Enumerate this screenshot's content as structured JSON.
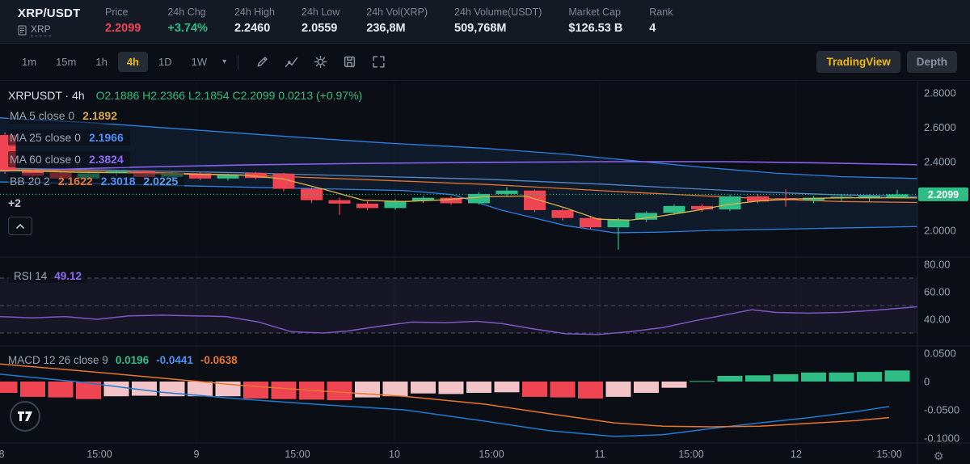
{
  "colors": {
    "bg": "#0b0f15",
    "up": "#2ebd85",
    "down": "#ef4452",
    "accent": "#f0b90b",
    "macd_pink": "#f2c4c8",
    "macd_line": "#1f7ad1",
    "signal_line": "#e8762d",
    "rsi_line": "#7e57c2",
    "ma5": "#d9b34a",
    "ma25": "#5688c7",
    "ma60": "#8a63f0",
    "bb_line": "#2f80e0",
    "bb_mid": "#e8762d",
    "axis_text": "#97a0ac"
  },
  "header": {
    "pair": "XRP/USDT",
    "pair_sub": "XRP",
    "stats": [
      {
        "label": "Price",
        "value": "2.2099"
      },
      {
        "label": "24h Chg",
        "value": "+3.74%"
      },
      {
        "label": "24h High",
        "value": "2.2460"
      },
      {
        "label": "24h Low",
        "value": "2.0559"
      },
      {
        "label": "24h Vol(XRP)",
        "value": "236,8M"
      },
      {
        "label": "24h Volume(USDT)",
        "value": "509,768M"
      },
      {
        "label": "Market Cap",
        "value": "$126.53 B"
      },
      {
        "label": "Rank",
        "value": "4"
      }
    ]
  },
  "toolbar": {
    "intervals": [
      "1m",
      "15m",
      "1h",
      "4h",
      "1D",
      "1W"
    ],
    "active_interval": "4h",
    "caret": "▾",
    "buttons": {
      "tradingview": "TradingView",
      "depth": "Depth"
    }
  },
  "legend": {
    "symbol_row": {
      "title": "XRPUSDT · 4h",
      "ohlc": "O2.1886  H2.2366  L2.1854  C2.2099  0.0213 (+0.97%)"
    },
    "ma5": {
      "label": "MA 5 close 0",
      "value": "2.1892"
    },
    "ma25": {
      "label": "MA 25 close 0",
      "value": "2.1966"
    },
    "ma60": {
      "label": "MA 60 close 0",
      "value": "2.3824"
    },
    "bb": {
      "label": "BB 20 2",
      "v1": "2.1622",
      "v2": "2.3018",
      "v3": "2.0225"
    },
    "more": "+2",
    "rsi": {
      "label": "RSI 14",
      "value": "49.12"
    },
    "macd": {
      "label": "MACD 12 26 close 9",
      "v1": "0.0196",
      "v2": "-0.0441",
      "v3": "-0.0638"
    }
  },
  "time_axis": {
    "ticks": [
      [
        "8",
        2
      ],
      [
        "15:00",
        123
      ],
      [
        "9",
        243
      ],
      [
        "15:00",
        368
      ],
      [
        "10",
        488
      ],
      [
        "15:00",
        608
      ],
      [
        "11",
        742
      ],
      [
        "15:00",
        855
      ],
      [
        "12",
        985
      ],
      [
        "15:00",
        1100
      ]
    ],
    "day_gridlines": [
      243,
      488,
      742,
      985
    ]
  },
  "chart_data": [
    {
      "type": "candlestick",
      "panel": "main",
      "symbol": "XRPUSDT",
      "interval": "4h",
      "last_price": 2.2099,
      "last_price_label": "2.2099",
      "y_axis": [
        [
          "2.8000",
          2.8
        ],
        [
          "2.6000",
          2.6
        ],
        [
          "2.4000",
          2.4
        ],
        [
          "2.0000",
          2.0
        ]
      ],
      "candles": [
        [
          6,
          2.555,
          2.57,
          2.33,
          2.345
        ],
        [
          40.5,
          2.35,
          2.36,
          2.3,
          2.318
        ],
        [
          75,
          2.335,
          2.345,
          2.29,
          2.302
        ],
        [
          109.5,
          2.302,
          2.34,
          2.295,
          2.332
        ],
        [
          144,
          2.332,
          2.352,
          2.318,
          2.345
        ],
        [
          178.5,
          2.345,
          2.35,
          2.3,
          2.312
        ],
        [
          213,
          2.312,
          2.34,
          2.3,
          2.332
        ],
        [
          247.5,
          2.332,
          2.34,
          2.292,
          2.302
        ],
        [
          282,
          2.302,
          2.33,
          2.29,
          2.322
        ],
        [
          316.5,
          2.335,
          2.34,
          2.298,
          2.305
        ],
        [
          351,
          2.33,
          2.335,
          2.228,
          2.242
        ],
        [
          385.5,
          2.242,
          2.25,
          2.158,
          2.176
        ],
        [
          420,
          2.176,
          2.19,
          2.09,
          2.156
        ],
        [
          454.5,
          2.156,
          2.17,
          2.118,
          2.13
        ],
        [
          489,
          2.13,
          2.182,
          2.12,
          2.172
        ],
        [
          523.5,
          2.172,
          2.2,
          2.16,
          2.19
        ],
        [
          558,
          2.19,
          2.2,
          2.148,
          2.158
        ],
        [
          592.5,
          2.158,
          2.222,
          2.15,
          2.212
        ],
        [
          627,
          2.212,
          2.252,
          2.198,
          2.232
        ],
        [
          661.5,
          2.232,
          2.238,
          2.106,
          2.118
        ],
        [
          696,
          2.118,
          2.128,
          2.058,
          2.072
        ],
        [
          730.5,
          2.072,
          2.08,
          2.008,
          2.018
        ],
        [
          765,
          2.018,
          2.072,
          1.888,
          2.062
        ],
        [
          799.5,
          2.062,
          2.112,
          2.048,
          2.102
        ],
        [
          834,
          2.102,
          2.152,
          2.09,
          2.142
        ],
        [
          868.5,
          2.142,
          2.152,
          2.108,
          2.122
        ],
        [
          903,
          2.122,
          2.208,
          2.112,
          2.198
        ],
        [
          937.5,
          2.198,
          2.212,
          2.158,
          2.168
        ],
        [
          972,
          2.188,
          2.238,
          2.138,
          2.175
        ],
        [
          1006.5,
          2.175,
          2.2,
          2.158,
          2.19
        ],
        [
          1041,
          2.19,
          2.212,
          2.168,
          2.196
        ],
        [
          1075.5,
          2.186,
          2.21,
          2.17,
          2.2
        ],
        [
          1110,
          2.1886,
          2.2366,
          2.1854,
          2.2099
        ]
      ],
      "overlays": {
        "bb_upper": [
          [
            0,
            2.655
          ],
          [
            120,
            2.625
          ],
          [
            240,
            2.585
          ],
          [
            360,
            2.545
          ],
          [
            480,
            2.508
          ],
          [
            600,
            2.478
          ],
          [
            700,
            2.443
          ],
          [
            800,
            2.398
          ],
          [
            880,
            2.363
          ],
          [
            960,
            2.333
          ],
          [
            1040,
            2.313
          ],
          [
            1135,
            2.302
          ]
        ],
        "bb_lower": [
          [
            0,
            2.282
          ],
          [
            150,
            2.268
          ],
          [
            300,
            2.252
          ],
          [
            420,
            2.24
          ],
          [
            500,
            2.232
          ],
          [
            560,
            2.208
          ],
          [
            620,
            2.118
          ],
          [
            700,
            2.028
          ],
          [
            760,
            1.986
          ],
          [
            820,
            1.99
          ],
          [
            880,
            2.0
          ],
          [
            950,
            2.006
          ],
          [
            1020,
            2.012
          ],
          [
            1135,
            2.0225
          ]
        ],
        "bb_mid": [
          [
            0,
            2.355
          ],
          [
            150,
            2.342
          ],
          [
            300,
            2.322
          ],
          [
            450,
            2.296
          ],
          [
            600,
            2.268
          ],
          [
            700,
            2.243
          ],
          [
            780,
            2.222
          ],
          [
            850,
            2.206
          ],
          [
            920,
            2.19
          ],
          [
            990,
            2.176
          ],
          [
            1040,
            2.168
          ],
          [
            1135,
            2.1622
          ]
        ],
        "ma5": [
          [
            0,
            2.35
          ],
          [
            100,
            2.338
          ],
          [
            200,
            2.33
          ],
          [
            300,
            2.322
          ],
          [
            350,
            2.3
          ],
          [
            400,
            2.24
          ],
          [
            450,
            2.175
          ],
          [
            500,
            2.168
          ],
          [
            550,
            2.178
          ],
          [
            600,
            2.196
          ],
          [
            650,
            2.2
          ],
          [
            700,
            2.13
          ],
          [
            740,
            2.065
          ],
          [
            780,
            2.06
          ],
          [
            820,
            2.085
          ],
          [
            860,
            2.115
          ],
          [
            900,
            2.15
          ],
          [
            940,
            2.172
          ],
          [
            980,
            2.182
          ],
          [
            1020,
            2.188
          ],
          [
            1060,
            2.19
          ],
          [
            1135,
            2.1892
          ]
        ],
        "ma25": [
          [
            0,
            2.362
          ],
          [
            150,
            2.35
          ],
          [
            300,
            2.335
          ],
          [
            450,
            2.316
          ],
          [
            600,
            2.298
          ],
          [
            750,
            2.268
          ],
          [
            850,
            2.244
          ],
          [
            950,
            2.222
          ],
          [
            1030,
            2.208
          ],
          [
            1135,
            2.1966
          ]
        ],
        "ma60": [
          [
            0,
            2.345
          ],
          [
            150,
            2.366
          ],
          [
            300,
            2.381
          ],
          [
            450,
            2.39
          ],
          [
            600,
            2.396
          ],
          [
            750,
            2.4
          ],
          [
            900,
            2.4
          ],
          [
            1000,
            2.394
          ],
          [
            1135,
            2.3824
          ]
        ]
      }
    },
    {
      "type": "line",
      "panel": "rsi",
      "name": "RSI 14",
      "value": 49.12,
      "y_axis": [
        [
          "80.00",
          80
        ],
        [
          "60.00",
          60
        ],
        [
          "40.00",
          40
        ]
      ],
      "guides": [
        70,
        50,
        30
      ],
      "band": [
        70,
        30
      ],
      "points": [
        [
          0,
          42
        ],
        [
          40,
          41
        ],
        [
          80,
          42
        ],
        [
          120,
          40
        ],
        [
          160,
          42.5
        ],
        [
          200,
          43
        ],
        [
          240,
          42.5
        ],
        [
          280,
          42
        ],
        [
          320,
          38
        ],
        [
          360,
          31
        ],
        [
          400,
          30
        ],
        [
          430,
          31.5
        ],
        [
          470,
          35
        ],
        [
          510,
          38
        ],
        [
          550,
          37.5
        ],
        [
          590,
          38.5
        ],
        [
          620,
          37
        ],
        [
          660,
          33
        ],
        [
          700,
          29.5
        ],
        [
          740,
          29
        ],
        [
          780,
          31
        ],
        [
          820,
          34
        ],
        [
          860,
          39
        ],
        [
          900,
          43.5
        ],
        [
          930,
          47
        ],
        [
          960,
          45
        ],
        [
          1000,
          44.5
        ],
        [
          1040,
          45
        ],
        [
          1080,
          46.5
        ],
        [
          1135,
          49.1
        ]
      ]
    },
    {
      "type": "macd",
      "panel": "macd",
      "macd": -0.0441,
      "signal": -0.0638,
      "hist": 0.0196,
      "y_axis": [
        [
          "0.0500",
          0.05
        ],
        [
          "0",
          0
        ],
        [
          "-0.0500",
          -0.05
        ],
        [
          "-0.1000",
          -0.1
        ]
      ],
      "histogram": [
        [
          6,
          -0.02,
          "r"
        ],
        [
          40.5,
          -0.027,
          "r"
        ],
        [
          75,
          -0.028,
          "r"
        ],
        [
          109.5,
          -0.031,
          "r"
        ],
        [
          144,
          -0.026,
          "p"
        ],
        [
          178.5,
          -0.025,
          "p"
        ],
        [
          213,
          -0.026,
          "p"
        ],
        [
          247.5,
          -0.026,
          "p"
        ],
        [
          282,
          -0.026,
          "p"
        ],
        [
          316.5,
          -0.03,
          "r"
        ],
        [
          351,
          -0.031,
          "r"
        ],
        [
          385.5,
          -0.032,
          "r"
        ],
        [
          420,
          -0.033,
          "r"
        ],
        [
          454.5,
          -0.028,
          "p"
        ],
        [
          489,
          -0.026,
          "p"
        ],
        [
          523.5,
          -0.021,
          "p"
        ],
        [
          558,
          -0.022,
          "p"
        ],
        [
          592.5,
          -0.02,
          "p"
        ],
        [
          627,
          -0.019,
          "p"
        ],
        [
          661.5,
          -0.027,
          "r"
        ],
        [
          696,
          -0.028,
          "r"
        ],
        [
          730.5,
          -0.03,
          "r"
        ],
        [
          765,
          -0.027,
          "p"
        ],
        [
          799.5,
          -0.02,
          "p"
        ],
        [
          834,
          -0.011,
          "p"
        ],
        [
          868.5,
          0.001,
          "g"
        ],
        [
          903,
          0.01,
          "g"
        ],
        [
          937.5,
          0.011,
          "g"
        ],
        [
          972,
          0.013,
          "g"
        ],
        [
          1006.5,
          0.016,
          "g"
        ],
        [
          1041,
          0.016,
          "g"
        ],
        [
          1075.5,
          0.017,
          "g"
        ],
        [
          1110,
          0.0196,
          "g"
        ]
      ],
      "macd_line": [
        [
          0,
          0.013
        ],
        [
          100,
          -0.001
        ],
        [
          200,
          -0.019
        ],
        [
          300,
          -0.031
        ],
        [
          400,
          -0.041
        ],
        [
          500,
          -0.05
        ],
        [
          600,
          -0.07
        ],
        [
          680,
          -0.087
        ],
        [
          760,
          -0.097
        ],
        [
          820,
          -0.094
        ],
        [
          880,
          -0.083
        ],
        [
          940,
          -0.073
        ],
        [
          1000,
          -0.064
        ],
        [
          1060,
          -0.053
        ],
        [
          1100,
          -0.0441
        ]
      ],
      "signal_line": [
        [
          0,
          0.031
        ],
        [
          100,
          0.019
        ],
        [
          200,
          0.006
        ],
        [
          300,
          -0.007
        ],
        [
          400,
          -0.017
        ],
        [
          500,
          -0.026
        ],
        [
          600,
          -0.04
        ],
        [
          680,
          -0.057
        ],
        [
          760,
          -0.073
        ],
        [
          820,
          -0.079
        ],
        [
          880,
          -0.08
        ],
        [
          940,
          -0.079
        ],
        [
          1000,
          -0.074
        ],
        [
          1060,
          -0.069
        ],
        [
          1100,
          -0.0638
        ]
      ]
    }
  ]
}
